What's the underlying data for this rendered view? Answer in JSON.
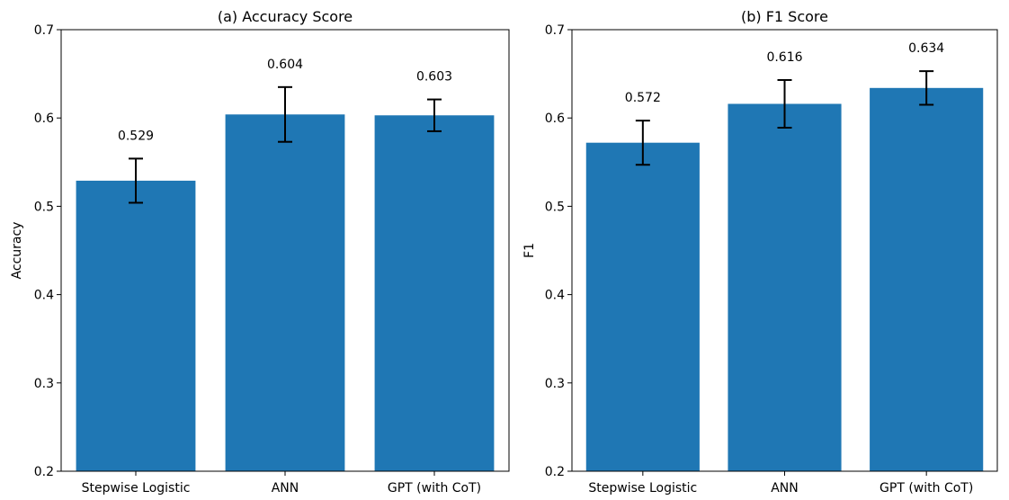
{
  "chart_data": [
    {
      "type": "bar",
      "title": "(a) Accuracy Score",
      "xlabel": "",
      "ylabel": "Accuracy",
      "categories": [
        "Stepwise Logistic",
        "ANN",
        "GPT (with CoT)"
      ],
      "values": [
        0.529,
        0.604,
        0.603
      ],
      "value_labels": [
        "0.529",
        "0.604",
        "0.603"
      ],
      "errors": [
        0.025,
        0.031,
        0.018
      ],
      "ylim": [
        0.2,
        0.7
      ],
      "yticks": [
        0.2,
        0.3,
        0.4,
        0.5,
        0.6,
        0.7
      ],
      "ytick_labels": [
        "0.2",
        "0.3",
        "0.4",
        "0.5",
        "0.6",
        "0.7"
      ],
      "grid": false,
      "bar_color": "#1f77b4"
    },
    {
      "type": "bar",
      "title": "(b) F1 Score",
      "xlabel": "",
      "ylabel": "F1",
      "categories": [
        "Stepwise Logistic",
        "ANN",
        "GPT (with CoT)"
      ],
      "values": [
        0.572,
        0.616,
        0.634
      ],
      "value_labels": [
        "0.572",
        "0.616",
        "0.634"
      ],
      "errors": [
        0.025,
        0.027,
        0.019
      ],
      "ylim": [
        0.2,
        0.7
      ],
      "yticks": [
        0.2,
        0.3,
        0.4,
        0.5,
        0.6,
        0.7
      ],
      "ytick_labels": [
        "0.2",
        "0.3",
        "0.4",
        "0.5",
        "0.6",
        "0.7"
      ],
      "grid": false,
      "bar_color": "#1f77b4"
    }
  ]
}
